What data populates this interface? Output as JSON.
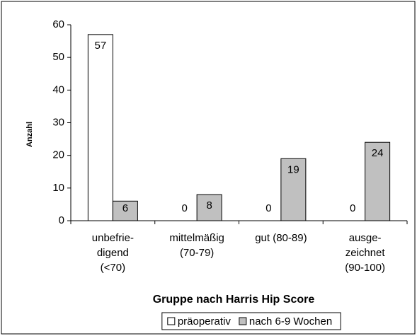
{
  "chart_data": {
    "type": "bar",
    "categories": [
      [
        "unbefrie-",
        "digend",
        "(<70)"
      ],
      [
        "mittelmäßig",
        "(70-79)"
      ],
      [
        "gut (80-89)"
      ],
      [
        "ausge-",
        "zeichnet",
        "(90-100)"
      ]
    ],
    "series": [
      {
        "name": "präoperativ",
        "color": "#ffffff",
        "values": [
          57,
          0,
          0,
          0
        ]
      },
      {
        "name": "nach 6-9 Wochen",
        "color": "#c0c0c0",
        "values": [
          6,
          8,
          19,
          24
        ]
      }
    ],
    "ylim": [
      0,
      60
    ],
    "yticks": [
      0,
      10,
      20,
      30,
      40,
      50,
      60
    ],
    "ylabel": "Anzahl",
    "xlabel": "Gruppe nach Harris Hip Score",
    "legend": "bottom",
    "grid": false
  }
}
